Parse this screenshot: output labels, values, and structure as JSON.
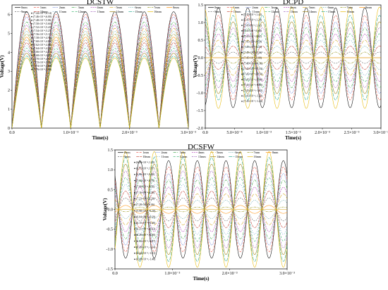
{
  "chart_data": [
    {
      "type": "line",
      "title": "DCSTW",
      "xlabel": "Time(s)",
      "ylabel": "Voltage(V)",
      "xlim": [
        0,
        0.003
      ],
      "ylim": [
        0,
        6.5
      ],
      "xticks": [
        {
          "v": 0.0,
          "label": "0.0"
        },
        {
          "v": 0.001,
          "label": "1.0×10⁻³"
        },
        {
          "v": 0.002,
          "label": "2.0×10⁻³"
        },
        {
          "v": 0.003,
          "label": "3.0×10⁻³"
        }
      ],
      "yticks": [
        0,
        1,
        2,
        3,
        4,
        5,
        6
      ],
      "series": [
        {
          "name": "0mm"
        },
        {
          "name": "1mm"
        },
        {
          "name": "2mm"
        },
        {
          "name": "3mm"
        },
        {
          "name": "4mm"
        },
        {
          "name": "5mm"
        },
        {
          "name": "6mm"
        },
        {
          "name": "7mm"
        },
        {
          "name": "8mm"
        },
        {
          "name": "9mm"
        },
        {
          "name": "10mm"
        },
        {
          "name": "11mm"
        },
        {
          "name": "12mm"
        },
        {
          "name": "13mm"
        },
        {
          "name": "14mm"
        },
        {
          "name": "15mm"
        },
        {
          "name": "16mm"
        }
      ],
      "amplitudes": [
        6.14,
        6.0,
        5.86,
        5.6,
        5.43,
        5.27,
        5.11,
        4.96,
        4.8,
        4.65,
        4.5,
        4.35,
        4.21,
        4.07,
        3.95,
        3.8,
        3.7
      ],
      "annotations": [
        "(7.44×10⁻⁴,6.14)",
        "(7.46×10⁻⁴,6.00)",
        "(7.48×10⁻⁴,5.86)",
        "(7.50×10⁻⁴,5.60)",
        "(7.52×10⁻⁴,5.43)",
        "(7.54×10⁻⁴,5.27)",
        "(7.56×10⁻⁴,5.11)",
        "(7.58×10⁻⁴,4.96)",
        "(7.60×10⁻⁴,4.80)",
        "(7.62×10⁻⁴,4.65)",
        "(7.64×10⁻⁴,4.50)",
        "(7.66×10⁻⁴,4.35)",
        "(7.68×10⁻⁴,4.21)",
        "(7.70×10⁻⁴,4.07)",
        "(7.72×10⁻⁴,3.95)",
        "(7.74×10⁻⁴,3.80)",
        "(7.76×10⁻⁴,3.70)"
      ]
    },
    {
      "type": "line",
      "title": "DCPD",
      "xlabel": "Time(s)",
      "ylabel": "Voltage(V)",
      "xlim": [
        0,
        0.003
      ],
      "ylim": [
        -2.0,
        1.5
      ],
      "xticks": [
        {
          "v": 0.0,
          "label": "0.0"
        },
        {
          "v": 0.0005,
          "label": "5.0×10⁻⁴"
        },
        {
          "v": 0.001,
          "label": "1.0×10⁻³"
        },
        {
          "v": 0.0015,
          "label": "1.5×10⁻³"
        },
        {
          "v": 0.002,
          "label": "2.0×10⁻³"
        },
        {
          "v": 0.0025,
          "label": "2.5×10⁻³"
        },
        {
          "v": 0.003,
          "label": "3.0×10⁻³"
        }
      ],
      "yticks": [
        -2.0,
        -1.5,
        -1.0,
        -0.5,
        0.0,
        0.5,
        1.0,
        1.5
      ],
      "series": [
        {
          "name": "0mm"
        },
        {
          "name": "1mm"
        },
        {
          "name": "2mm"
        },
        {
          "name": "3mm"
        },
        {
          "name": "4mm"
        },
        {
          "name": "5mm"
        },
        {
          "name": "6mm"
        },
        {
          "name": "7mm"
        },
        {
          "name": "8mm"
        },
        {
          "name": "9mm"
        },
        {
          "name": "10mm"
        },
        {
          "name": "11mm"
        },
        {
          "name": "12mm"
        },
        {
          "name": "13mm"
        },
        {
          "name": "14mm"
        },
        {
          "name": "15mm"
        },
        {
          "name": "16mm"
        }
      ],
      "amplitudes": [
        1.42,
        1.2,
        1.01,
        0.85,
        0.67,
        0.5,
        0.33,
        0.16,
        0.0,
        -0.16,
        -0.33,
        -0.5,
        -0.68,
        -0.85,
        -1.02,
        -1.2,
        -1.44
      ],
      "annotations": [
        "(7.45×10⁻⁴,1.42)",
        "(7.45×10⁻⁴,1.20)",
        "(7.45×10⁻⁴,1.01)",
        "(7.45×10⁻⁴,0.85)",
        "(7.45×10⁻⁴,0.67)",
        "(7.45×10⁻⁴,0.50)",
        "(7.45×10⁻⁴,0.33)",
        "(7.45×10⁻⁴,0.16)",
        "(7.45×10⁻⁴,0.00)",
        "(7.45×10⁻⁴,-0.16)",
        "(7.45×10⁻⁴,-0.33)",
        "(7.45×10⁻⁴,-0.50)",
        "(7.45×10⁻⁴,-0.68)",
        "(7.45×10⁻⁴,-0.85)",
        "(7.45×10⁻⁴,-1.02)",
        "(7.45×10⁻⁴,-1.20)",
        "(7.45×10⁻⁴,-1.44)"
      ]
    },
    {
      "type": "line",
      "title": "DCSFW",
      "xlabel": "Time(s)",
      "ylabel": "Voltage(V)",
      "xlim": [
        0,
        0.003
      ],
      "ylim": [
        -1.5,
        1.5
      ],
      "xticks": [
        {
          "v": 0.0,
          "label": "0.0"
        },
        {
          "v": 0.001,
          "label": "1.0×10⁻³"
        },
        {
          "v": 0.002,
          "label": "2.0×10⁻³"
        },
        {
          "v": 0.003,
          "label": "3.0×10⁻³"
        }
      ],
      "yticks": [
        -1.5,
        -1.0,
        -0.5,
        0.0,
        0.5,
        1.0,
        1.5
      ],
      "series": [
        {
          "name": "0mm"
        },
        {
          "name": "1mm"
        },
        {
          "name": "2mm"
        },
        {
          "name": "3mm"
        },
        {
          "name": "4mm"
        },
        {
          "name": "5mm"
        },
        {
          "name": "6mm"
        },
        {
          "name": "7mm"
        },
        {
          "name": "8mm"
        },
        {
          "name": "9mm"
        },
        {
          "name": "10mm"
        },
        {
          "name": "11mm"
        },
        {
          "name": "12mm"
        },
        {
          "name": "13mm"
        },
        {
          "name": "14mm"
        },
        {
          "name": "15mm"
        },
        {
          "name": "16mm"
        }
      ],
      "amplitudes": [
        1.23,
        1.07,
        0.9,
        0.74,
        0.56,
        0.39,
        0.23,
        0.06,
        -0.1,
        -0.29,
        -0.46,
        -0.63,
        -0.8,
        -0.97,
        -1.14,
        -1.31,
        -1.46
      ],
      "annotations": [
        "(6.86×10⁻⁴,1.23)",
        "(6.91×10⁻⁴,1.07)",
        "(6.96×10⁻⁴,0.90)",
        "(7.02×10⁻⁴,0.74)",
        "(7.08×10⁻⁴,0.56)",
        "(7.16×10⁻⁴,0.39)",
        "(7.23×10⁻⁴,0.23)",
        "(7.28×10⁻⁴,0.06)",
        "(5.98×10⁻⁴,-0.10)",
        "(6.04×10⁻⁴,-0.29)",
        "(6.15×10⁻⁴,-0.46)",
        "(6.21×10⁻⁴,-0.63)",
        "(6.28×10⁻⁴,-0.80)",
        "(6.33×10⁻⁴,-0.97)",
        "(6.39×10⁻⁴,-1.14)",
        "(6.44×10⁻⁴,-1.31)",
        "(6.48×10⁻⁴,-1.46)"
      ]
    }
  ],
  "colors": [
    "#000000",
    "#e84a3c",
    "#3a55c9",
    "#2e9e3a",
    "#b03ab8",
    "#d4a017",
    "#1a7f7f",
    "#8a8a00",
    "#ff8c00",
    "#555555",
    "#c0392b",
    "#2980b9",
    "#27ae60",
    "#8e44ad",
    "#9a7d0a",
    "#16a085",
    "#e6b800"
  ]
}
